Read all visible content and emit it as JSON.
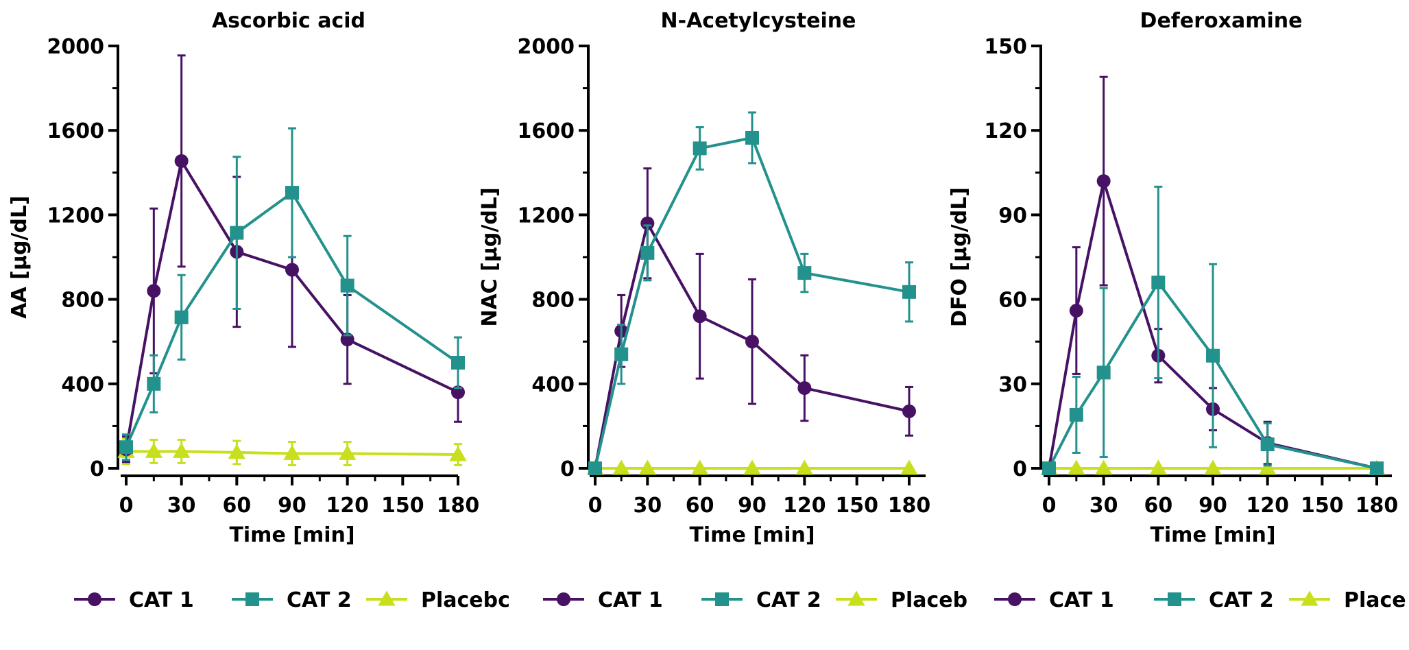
{
  "chart_data": [
    {
      "type": "line",
      "title": "Ascorbic acid",
      "xlabel": "Time [min]",
      "ylabel": "AA [µg/dL]",
      "x_ticks": [
        "0",
        "30",
        "60",
        "90",
        "120",
        "150",
        "180"
      ],
      "y_ticks": [
        "0",
        "400",
        "800",
        "1200",
        "1600",
        "2000"
      ],
      "xlim": [
        0,
        180
      ],
      "ylim": [
        0,
        2000
      ],
      "series": [
        {
          "name": "CAT 1",
          "color": "#471164",
          "marker": "circle",
          "x": [
            0,
            15,
            30,
            60,
            90,
            120,
            180
          ],
          "y": [
            90,
            840,
            1455,
            1025,
            940,
            610,
            360
          ],
          "err": [
            60,
            390,
            500,
            355,
            365,
            210,
            140
          ]
        },
        {
          "name": "CAT 2",
          "color": "#23918c",
          "marker": "square",
          "x": [
            0,
            15,
            30,
            60,
            90,
            120,
            180
          ],
          "y": [
            100,
            400,
            715,
            1115,
            1305,
            865,
            500
          ],
          "err": [
            60,
            135,
            200,
            360,
            305,
            235,
            120
          ]
        },
        {
          "name": "Placebo",
          "color": "#c8df1e",
          "marker": "triangle",
          "x": [
            0,
            15,
            30,
            60,
            90,
            120,
            180
          ],
          "y": [
            80,
            80,
            80,
            75,
            70,
            70,
            65
          ],
          "err": [
            60,
            55,
            55,
            55,
            55,
            55,
            50
          ]
        }
      ],
      "legend": {
        "position": "bottom",
        "labels": [
          "CAT 1",
          "CAT 2",
          "Placebc"
        ]
      }
    },
    {
      "type": "line",
      "title": "N-Acetylcysteine",
      "xlabel": "Time [min]",
      "ylabel": "NAC [µg/dL]",
      "x_ticks": [
        "0",
        "30",
        "60",
        "90",
        "120",
        "150",
        "180"
      ],
      "y_ticks": [
        "0",
        "400",
        "800",
        "1200",
        "1600",
        "2000"
      ],
      "xlim": [
        0,
        180
      ],
      "ylim": [
        0,
        2000
      ],
      "series": [
        {
          "name": "CAT 1",
          "color": "#471164",
          "marker": "circle",
          "x": [
            0,
            15,
            30,
            60,
            90,
            120,
            180
          ],
          "y": [
            0,
            650,
            1160,
            720,
            600,
            380,
            270
          ],
          "err": [
            0,
            170,
            260,
            295,
            295,
            155,
            115
          ]
        },
        {
          "name": "CAT 2",
          "color": "#23918c",
          "marker": "square",
          "x": [
            0,
            15,
            30,
            60,
            90,
            120,
            180
          ],
          "y": [
            0,
            540,
            1020,
            1515,
            1565,
            925,
            835
          ],
          "err": [
            0,
            140,
            130,
            100,
            120,
            90,
            140
          ]
        },
        {
          "name": "Placebo",
          "color": "#c8df1e",
          "marker": "triangle",
          "x": [
            0,
            15,
            30,
            60,
            90,
            120,
            180
          ],
          "y": [
            0,
            0,
            0,
            0,
            0,
            0,
            0
          ],
          "err": [
            0,
            0,
            0,
            0,
            0,
            0,
            0
          ]
        }
      ],
      "legend": {
        "position": "bottom",
        "labels": [
          "CAT 1",
          "CAT 2",
          "Placeb"
        ]
      }
    },
    {
      "type": "line",
      "title": "Deferoxamine",
      "xlabel": "Time [min]",
      "ylabel": "DFO [µg/dL]",
      "x_ticks": [
        "0",
        "30",
        "60",
        "90",
        "120",
        "150",
        "180"
      ],
      "y_ticks": [
        "0",
        "30",
        "60",
        "90",
        "120",
        "150"
      ],
      "xlim": [
        0,
        180
      ],
      "ylim": [
        0,
        150
      ],
      "series": [
        {
          "name": "CAT 1",
          "color": "#471164",
          "marker": "circle",
          "x": [
            0,
            15,
            30,
            60,
            90,
            120,
            180
          ],
          "y": [
            0,
            56,
            102,
            40,
            21,
            9,
            0
          ],
          "err": [
            0,
            22.5,
            37,
            9.5,
            7.5,
            7.5,
            0
          ]
        },
        {
          "name": "CAT 2",
          "color": "#23918c",
          "marker": "square",
          "x": [
            0,
            15,
            30,
            60,
            90,
            120,
            180
          ],
          "y": [
            0,
            19,
            34,
            66,
            40,
            8.5,
            0
          ],
          "err": [
            0,
            13.5,
            30,
            34,
            32.5,
            7.5,
            0
          ]
        },
        {
          "name": "Placebo",
          "color": "#c8df1e",
          "marker": "triangle",
          "x": [
            0,
            15,
            30,
            60,
            90,
            120,
            180
          ],
          "y": [
            0,
            0,
            0,
            0,
            0,
            0,
            0
          ],
          "err": [
            0,
            0,
            0,
            0,
            0,
            0,
            0
          ]
        }
      ],
      "legend": {
        "position": "bottom",
        "labels": [
          "CAT 1",
          "CAT 2",
          "Place"
        ]
      }
    }
  ]
}
